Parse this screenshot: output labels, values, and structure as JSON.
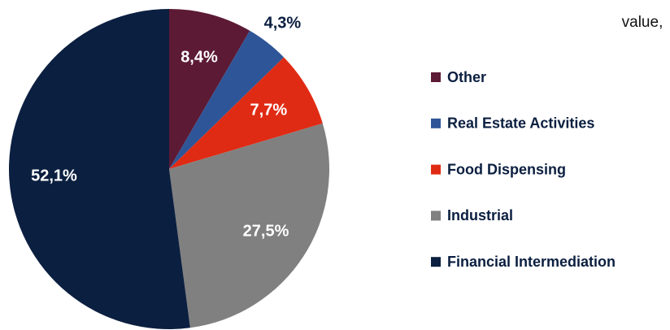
{
  "chart_data": {
    "type": "pie",
    "title": "value,",
    "categories": [
      "Other",
      "Real Estate Activities",
      "Food Dispensing",
      "Industrial",
      "Financial Intermediation"
    ],
    "values": [
      8.4,
      4.3,
      7.7,
      27.5,
      52.1
    ],
    "value_labels": [
      "8,4%",
      "4,3%",
      "7,7%",
      "27,5%",
      "52,1%"
    ],
    "colors": [
      "#5c1a35",
      "#2e5597",
      "#e02b14",
      "#808080",
      "#0b1f40"
    ],
    "legend": "right"
  }
}
